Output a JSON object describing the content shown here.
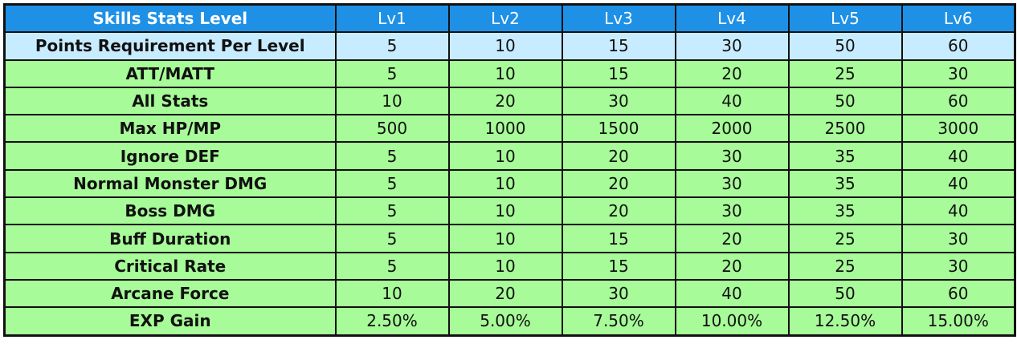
{
  "table": {
    "header": [
      "Skills Stats Level",
      "Lv1",
      "Lv2",
      "Lv3",
      "Lv4",
      "Lv5",
      "Lv6"
    ],
    "requirement_row": [
      "Points Requirement Per Level",
      "5",
      "10",
      "15",
      "30",
      "50",
      "60"
    ],
    "rows": [
      [
        "ATT/MATT",
        "5",
        "10",
        "15",
        "20",
        "25",
        "30"
      ],
      [
        "All Stats",
        "10",
        "20",
        "30",
        "40",
        "50",
        "60"
      ],
      [
        "Max HP/MP",
        "500",
        "1000",
        "1500",
        "2000",
        "2500",
        "3000"
      ],
      [
        "Ignore DEF",
        "5",
        "10",
        "20",
        "30",
        "35",
        "40"
      ],
      [
        "Normal Monster DMG",
        "5",
        "10",
        "20",
        "30",
        "35",
        "40"
      ],
      [
        "Boss DMG",
        "5",
        "10",
        "20",
        "30",
        "35",
        "40"
      ],
      [
        "Buff Duration",
        "5",
        "10",
        "15",
        "20",
        "25",
        "30"
      ],
      [
        "Critical Rate",
        "5",
        "10",
        "15",
        "20",
        "25",
        "30"
      ],
      [
        "Arcane Force",
        "10",
        "20",
        "30",
        "40",
        "50",
        "60"
      ],
      [
        "EXP Gain",
        "2.50%",
        "5.00%",
        "7.50%",
        "10.00%",
        "12.50%",
        "15.00%"
      ]
    ]
  },
  "colors": {
    "header_bg": "#1e90e6",
    "requirement_bg": "#c8ecff",
    "row_bg": "#a7fb98",
    "border": "#111111"
  }
}
